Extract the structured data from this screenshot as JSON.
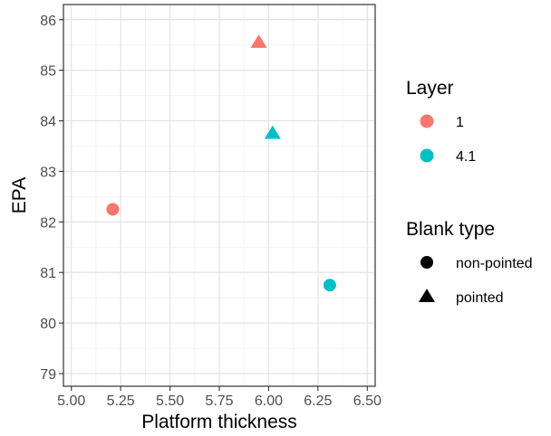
{
  "chart_data": {
    "type": "scatter",
    "xlabel": "Platform thickness",
    "ylabel": "EPA",
    "xlim": [
      4.96,
      6.54
    ],
    "ylim": [
      78.75,
      86.3
    ],
    "x_ticks": [
      5.0,
      5.25,
      5.5,
      5.75,
      6.0,
      6.25,
      6.5
    ],
    "x_tick_labels": [
      "5.00",
      "5.25",
      "5.50",
      "5.75",
      "6.00",
      "6.25",
      "6.50"
    ],
    "y_ticks": [
      79,
      80,
      81,
      82,
      83,
      84,
      85,
      86
    ],
    "y_tick_labels": [
      "79",
      "80",
      "81",
      "82",
      "83",
      "84",
      "85",
      "86"
    ],
    "grid": true,
    "legend_placement": "right",
    "points": [
      {
        "x": 5.21,
        "y": 82.25,
        "layer": "1",
        "blank_type": "non-pointed"
      },
      {
        "x": 5.95,
        "y": 85.55,
        "layer": "1",
        "blank_type": "pointed"
      },
      {
        "x": 6.02,
        "y": 83.75,
        "layer": "4.1",
        "blank_type": "pointed"
      },
      {
        "x": 6.31,
        "y": 80.75,
        "layer": "4.1",
        "blank_type": "non-pointed"
      }
    ],
    "legends": [
      {
        "title": "Layer",
        "kind": "color",
        "items": [
          {
            "label": "1",
            "color": "#F8766D"
          },
          {
            "label": "4.1",
            "color": "#00BFC4"
          }
        ]
      },
      {
        "title": "Blank type",
        "kind": "shape",
        "items": [
          {
            "label": "non-pointed",
            "shape": "circle"
          },
          {
            "label": "pointed",
            "shape": "triangle"
          }
        ]
      }
    ]
  }
}
